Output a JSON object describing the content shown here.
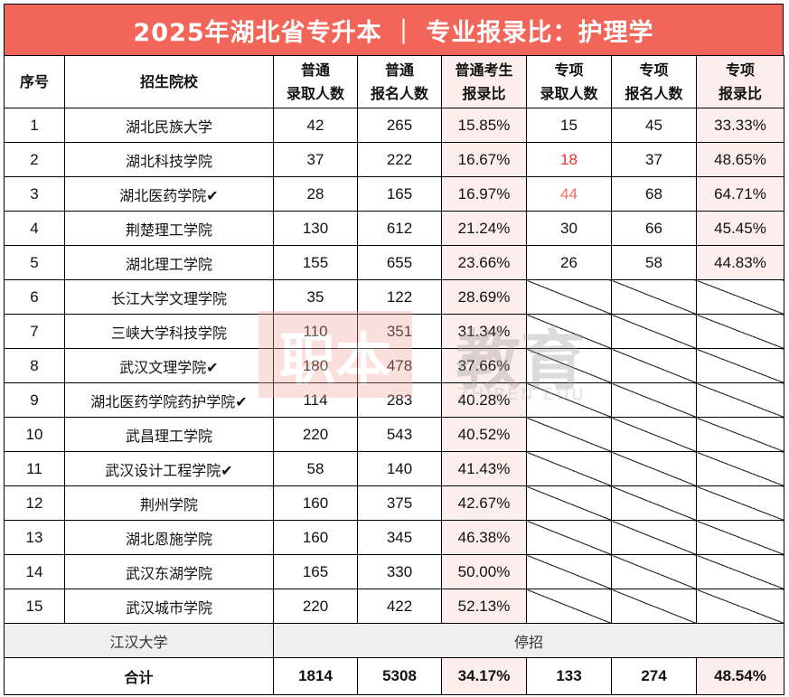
{
  "title": "2025年湖北省专升本 ｜ 专业报录比：护理学",
  "headers": {
    "index": "序号",
    "school": "招生院校",
    "normal_admit": [
      "普通",
      "录取人数"
    ],
    "normal_apply": [
      "普通",
      "报名人数"
    ],
    "normal_ratio": [
      "普通考生",
      "报录比"
    ],
    "special_admit": [
      "专项",
      "录取人数"
    ],
    "special_apply": [
      "专项",
      "报名人数"
    ],
    "special_ratio": [
      "专项",
      "报录比"
    ]
  },
  "rows": [
    {
      "index": "1",
      "school": "湖北民族大学",
      "na": "42",
      "nap": "265",
      "nr": "15.85%",
      "sa": "15",
      "sap": "45",
      "sr": "33.33%"
    },
    {
      "index": "2",
      "school": "湖北科技学院",
      "na": "37",
      "nap": "222",
      "nr": "16.67%",
      "sa": "18",
      "sap": "37",
      "sr": "48.65%"
    },
    {
      "index": "3",
      "school": "湖北医药学院✔",
      "na": "28",
      "nap": "165",
      "nr": "16.97%",
      "sa": "44",
      "sap": "68",
      "sr": "64.71%"
    },
    {
      "index": "4",
      "school": "荆楚理工学院",
      "na": "130",
      "nap": "612",
      "nr": "21.24%",
      "sa": "30",
      "sap": "66",
      "sr": "45.45%"
    },
    {
      "index": "5",
      "school": "湖北理工学院",
      "na": "155",
      "nap": "655",
      "nr": "23.66%",
      "sa": "26",
      "sap": "58",
      "sr": "44.83%"
    },
    {
      "index": "6",
      "school": "长江大学文理学院",
      "na": "35",
      "nap": "122",
      "nr": "28.69%"
    },
    {
      "index": "7",
      "school": "三峡大学科技学院",
      "na": "110",
      "nap": "351",
      "nr": "31.34%"
    },
    {
      "index": "8",
      "school": "武汉文理学院✔",
      "na": "180",
      "nap": "478",
      "nr": "37.66%"
    },
    {
      "index": "9",
      "school": "湖北医药学院药护学院✔",
      "na": "114",
      "nap": "283",
      "nr": "40.28%"
    },
    {
      "index": "10",
      "school": "武昌理工学院",
      "na": "220",
      "nap": "543",
      "nr": "40.52%"
    },
    {
      "index": "11",
      "school": "武汉设计工程学院✔",
      "na": "58",
      "nap": "140",
      "nr": "41.43%"
    },
    {
      "index": "12",
      "school": "荆州学院",
      "na": "160",
      "nap": "375",
      "nr": "42.67%"
    },
    {
      "index": "13",
      "school": "湖北恩施学院",
      "na": "160",
      "nap": "345",
      "nr": "46.38%"
    },
    {
      "index": "14",
      "school": "武汉东湖学院",
      "na": "165",
      "nap": "330",
      "nr": "50.00%"
    },
    {
      "index": "15",
      "school": "武汉城市学院",
      "na": "220",
      "nap": "422",
      "nr": "52.13%"
    }
  ],
  "suspended": {
    "school": "江汉大学",
    "status": "停招"
  },
  "total": {
    "label": "合计",
    "na": "1814",
    "nap": "5308",
    "nr": "34.17%",
    "sa": "133",
    "sap": "274",
    "sr": "48.54%"
  },
  "watermark": {
    "logo": "职本",
    "brand": "教育",
    "sub": "ZHIBEN EDU"
  },
  "colors": {
    "title_bg": "#f2665a",
    "ratio_column_bg": "#fdeeee",
    "highlight_red": "#e8302a",
    "highlight_light_red": "#ef6b62",
    "suspend_row_bg": "#efefef"
  }
}
